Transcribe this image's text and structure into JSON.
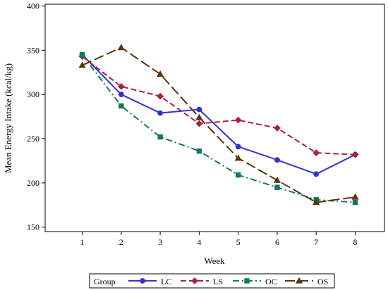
{
  "chart_data": {
    "type": "line",
    "xlabel": "Week",
    "ylabel": "Mean Energy Intake (kcal/kg)",
    "x": [
      1,
      2,
      3,
      4,
      5,
      6,
      7,
      8
    ],
    "xlim": [
      0.05,
      8.75
    ],
    "ylim": [
      145,
      402
    ],
    "yticks": [
      150,
      200,
      250,
      300,
      350,
      400
    ],
    "grid": false,
    "legend": {
      "title": "Group",
      "placement": "bottom"
    },
    "series": [
      {
        "name": "LC",
        "color": "#3333cc",
        "marker": "circle",
        "dash": "solid",
        "values": [
          345,
          300,
          279,
          283,
          241,
          226,
          210,
          232
        ]
      },
      {
        "name": "LS",
        "color": "#aa2040",
        "marker": "diamond",
        "dash": "dash",
        "values": [
          343,
          309,
          298,
          267,
          271,
          262,
          234,
          232
        ]
      },
      {
        "name": "OC",
        "color": "#117766",
        "marker": "square",
        "dash": "dashdot",
        "values": [
          345,
          287,
          252,
          236,
          209,
          195,
          181,
          178
        ]
      },
      {
        "name": "OS",
        "color": "#5a3308",
        "marker": "triangle",
        "dash": "longdash",
        "values": [
          333,
          353,
          323,
          274,
          228,
          203,
          178,
          184
        ]
      }
    ]
  }
}
